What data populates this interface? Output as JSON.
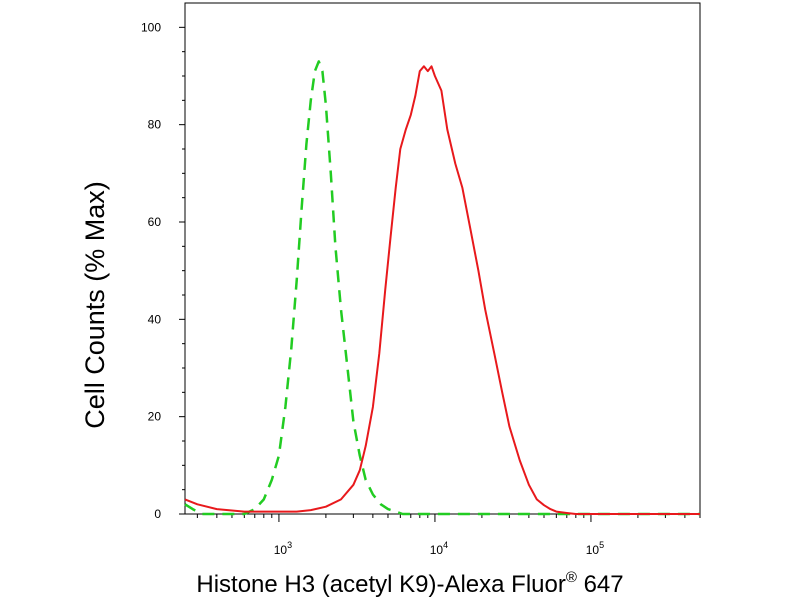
{
  "chart_data": {
    "type": "line",
    "title": "",
    "xlabel": "Histone H3 (acetyl K9)-Alexa Fluor",
    "xlabel_superscript": "®",
    "xlabel_suffix": " 647",
    "ylabel": "Cell Counts (% Max)",
    "x_scale": "log",
    "xlim": [
      250,
      500000
    ],
    "ylim": [
      0,
      105
    ],
    "y_ticks": [
      0,
      20,
      40,
      60,
      80,
      100
    ],
    "x_ticks": [
      {
        "value": 1000,
        "base": "10",
        "exp": "3"
      },
      {
        "value": 10000,
        "base": "10",
        "exp": "4"
      },
      {
        "value": 100000,
        "base": "10",
        "exp": "5"
      }
    ],
    "grid": false,
    "series": [
      {
        "style": "dashed",
        "color": "#22cc22",
        "x": [
          250,
          280,
          320,
          400,
          500,
          600,
          700,
          800,
          900,
          1000,
          1100,
          1200,
          1300,
          1400,
          1500,
          1600,
          1700,
          1800,
          1900,
          2000,
          2150,
          2300,
          2500,
          2750,
          3000,
          3300,
          3600,
          4000,
          4500,
          5000,
          5600,
          6200,
          7000,
          10000,
          100000,
          500000
        ],
        "y": [
          2,
          1,
          0,
          0,
          0,
          0,
          1,
          3,
          7,
          12,
          22,
          34,
          48,
          63,
          76,
          85,
          91,
          93,
          91,
          84,
          70,
          55,
          42,
          30,
          19,
          12,
          7,
          4,
          2,
          1,
          0.5,
          0,
          0,
          0,
          0,
          0
        ]
      },
      {
        "style": "solid",
        "color": "#e8191c",
        "x": [
          250,
          300,
          400,
          600,
          800,
          1000,
          1300,
          1600,
          2000,
          2500,
          3000,
          3300,
          3600,
          4000,
          4400,
          4800,
          5200,
          5600,
          6000,
          6500,
          7000,
          7500,
          8000,
          8500,
          9000,
          9500,
          10000,
          11000,
          12000,
          13500,
          15000,
          17000,
          19000,
          21000,
          24000,
          27000,
          30000,
          35000,
          40000,
          45000,
          50000,
          55000,
          60000,
          70000,
          80000,
          100000,
          500000
        ],
        "y": [
          3,
          2,
          1,
          0.5,
          0.5,
          0.5,
          0.5,
          0.8,
          1.5,
          3,
          6,
          9,
          14,
          22,
          33,
          46,
          57,
          67,
          75,
          79,
          82,
          86,
          91,
          92,
          91,
          92,
          90,
          87,
          79,
          72,
          67,
          58,
          50,
          42,
          33,
          25,
          18,
          11,
          6,
          3,
          1.8,
          1,
          0.5,
          0.2,
          0,
          0,
          0
        ]
      }
    ]
  }
}
